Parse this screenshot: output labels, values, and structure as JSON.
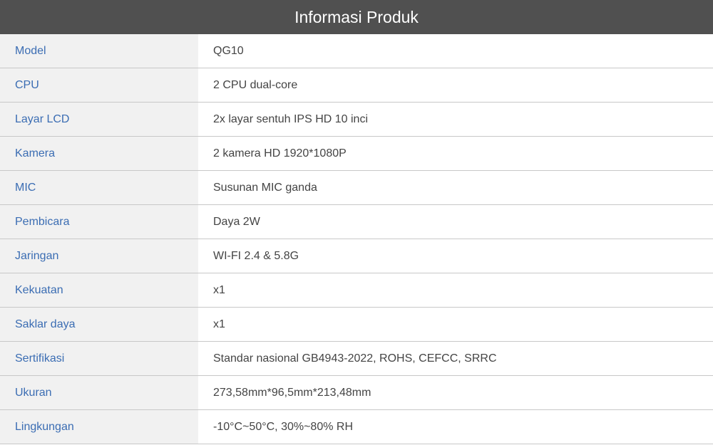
{
  "title": "Informasi Produk",
  "rows": [
    {
      "label": "Model",
      "value": "QG10"
    },
    {
      "label": "CPU",
      "value": "2 CPU dual-core"
    },
    {
      "label": "Layar LCD",
      "value": "2x layar sentuh IPS HD 10 inci"
    },
    {
      "label": "Kamera",
      "value": "2 kamera HD 1920*1080P"
    },
    {
      "label": "MIC",
      "value": "Susunan MIC ganda"
    },
    {
      "label": "Pembicara",
      "value": "Daya 2W"
    },
    {
      "label": "Jaringan",
      "value": "WI-FI 2.4 & 5.8G"
    },
    {
      "label": "Kekuatan",
      "value": "x1"
    },
    {
      "label": "Saklar daya",
      "value": "x1"
    },
    {
      "label": "Sertifikasi",
      "value": "Standar nasional GB4943-2022, ROHS, CEFCC, SRRC"
    },
    {
      "label": "Ukuran",
      "value": "273,58mm*96,5mm*213,48mm"
    },
    {
      "label": "Lingkungan",
      "value": "-10°C~50°C, 30%~80% RH"
    }
  ]
}
